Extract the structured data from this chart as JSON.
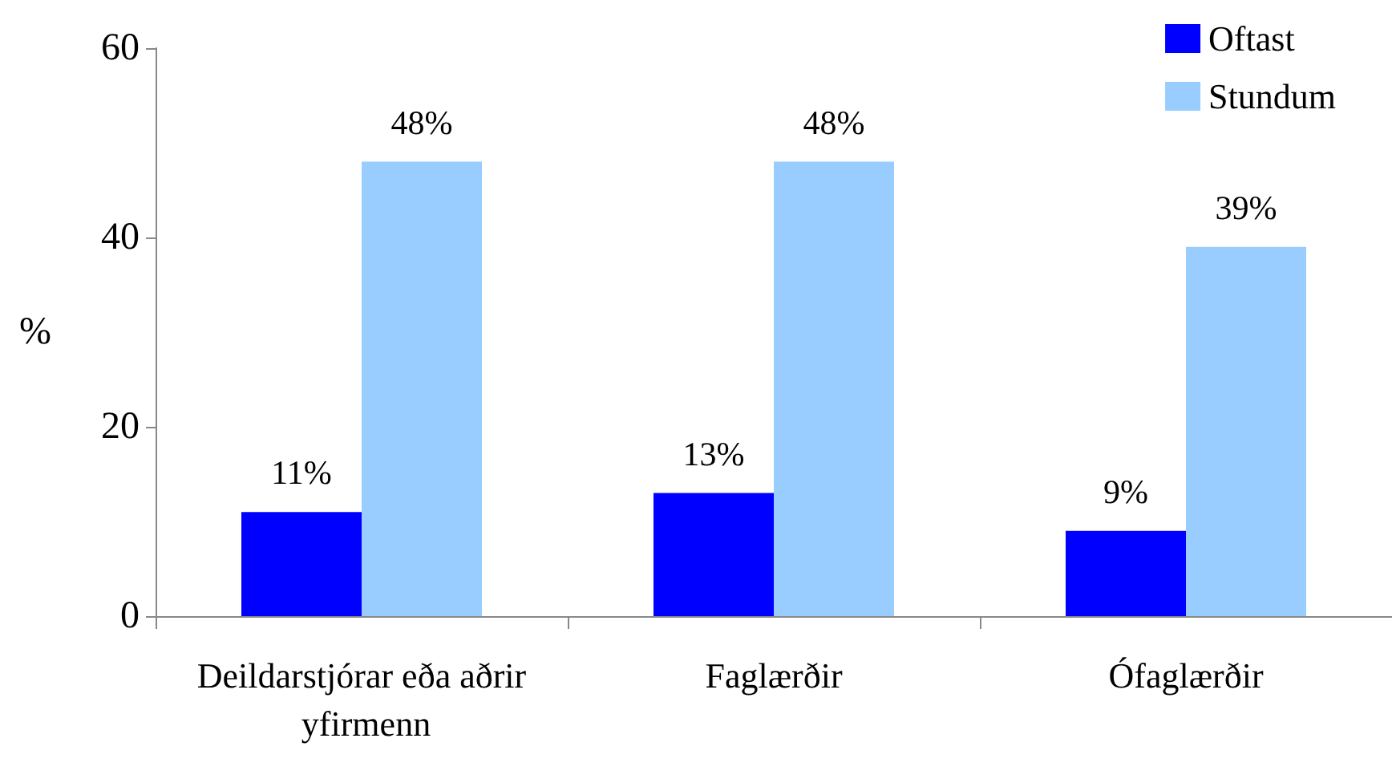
{
  "chart_data": {
    "type": "bar",
    "ylabel": "%",
    "categories": [
      "Deildarstjórar eða aðrir yfirmenn",
      "Faglærðir",
      "Ófaglærðir"
    ],
    "series": [
      {
        "name": "Oftast",
        "color": "#0000ff",
        "values": [
          11,
          13,
          9
        ],
        "value_labels": [
          "11%",
          "13%",
          "9%"
        ]
      },
      {
        "name": "Stundum",
        "color": "#99ccff",
        "values": [
          48,
          48,
          39
        ],
        "value_labels": [
          "48%",
          "48%",
          "39%"
        ]
      }
    ],
    "ylim": [
      0,
      60
    ],
    "yticks": [
      0,
      20,
      40,
      60
    ],
    "grid": false,
    "legend": "top right"
  }
}
